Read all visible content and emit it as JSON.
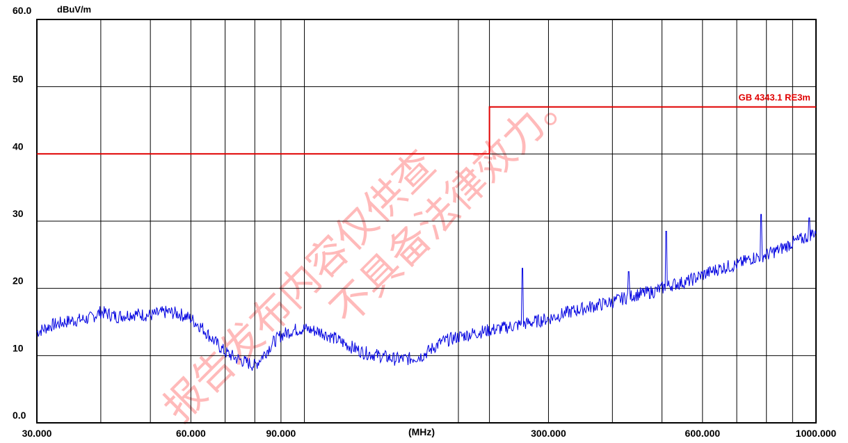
{
  "chart_data": {
    "type": "line",
    "ylabel": "dBuV/m",
    "xlabel": "(MHz)",
    "x_scale": "log",
    "xlim": [
      30,
      1000
    ],
    "ylim": [
      0,
      60
    ],
    "y_ticks": [
      {
        "value": 0,
        "label": "0.0"
      },
      {
        "value": 10,
        "label": "10"
      },
      {
        "value": 20,
        "label": "20"
      },
      {
        "value": 30,
        "label": "30"
      },
      {
        "value": 40,
        "label": "40"
      },
      {
        "value": 50,
        "label": "50"
      },
      {
        "value": 60,
        "label": "60.0"
      }
    ],
    "x_tick_labels": [
      {
        "value": 30,
        "label": "30.000"
      },
      {
        "value": 60,
        "label": "60.000"
      },
      {
        "value": 90,
        "label": "90.000"
      },
      {
        "value": 300,
        "label": "300.000"
      },
      {
        "value": 600,
        "label": "600.000"
      },
      {
        "value": 1000,
        "label": "1000.000"
      }
    ],
    "x_gridlines": [
      30,
      40,
      50,
      60,
      70,
      80,
      90,
      100,
      200,
      230,
      300,
      400,
      500,
      600,
      700,
      800,
      900,
      1000
    ],
    "grid": true,
    "series": [
      {
        "name": "GB 4343.1 RE3m",
        "color": "#e00000",
        "step": true,
        "x": [
          30,
          230,
          230,
          1000
        ],
        "y": [
          40,
          40,
          47,
          47
        ]
      },
      {
        "name": "",
        "color": "#0000e0",
        "noisy": true,
        "x": [
          30,
          32,
          35,
          38,
          40,
          43,
          46,
          50,
          54,
          57,
          60,
          63,
          66,
          70,
          74,
          77,
          80,
          84,
          87,
          90,
          95,
          100,
          108,
          115,
          122,
          130,
          140,
          150,
          160,
          170,
          185,
          200,
          220,
          240,
          260,
          280,
          300,
          330,
          360,
          400,
          440,
          480,
          520,
          560,
          600,
          650,
          700,
          750,
          800,
          850,
          900,
          950,
          1000
        ],
        "y": [
          13.5,
          14.5,
          15.2,
          15.5,
          16.5,
          15.8,
          16.2,
          16.0,
          16.5,
          16.2,
          15.5,
          14.2,
          12.5,
          10.5,
          9.5,
          9.0,
          8.5,
          10.5,
          12.0,
          13.0,
          13.8,
          14.0,
          13.5,
          12.5,
          11.5,
          10.5,
          10.0,
          9.5,
          9.5,
          10.0,
          12.0,
          12.8,
          13.5,
          14.0,
          14.5,
          15.0,
          15.5,
          16.5,
          17.2,
          18.0,
          19.0,
          19.5,
          20.5,
          21.0,
          22.0,
          23.0,
          23.5,
          24.5,
          25.0,
          25.8,
          26.8,
          27.5,
          28.5
        ]
      }
    ],
    "spikes": [
      {
        "x": 110,
        "y": 13.5
      },
      {
        "x": 267,
        "y": 23.0
      },
      {
        "x": 430,
        "y": 22.5
      },
      {
        "x": 510,
        "y": 28.5
      },
      {
        "x": 782,
        "y": 31.0
      },
      {
        "x": 970,
        "y": 30.5
      }
    ],
    "watermark_lines": [
      "报告发布内容仅供查",
      "不具备法律效力。"
    ]
  }
}
